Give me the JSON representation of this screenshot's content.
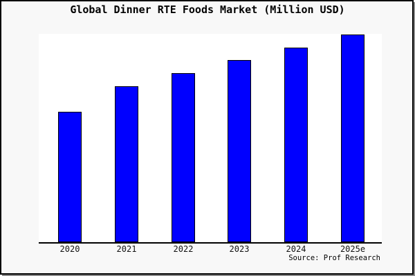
{
  "title": "Global Dinner RTE Foods Market (Million USD)",
  "source": "Source: Prof Research",
  "colors": {
    "bar_fill": "#0000ff",
    "bar_edge": "#000000",
    "plot_background": "#ffffff",
    "page_background": "#f8f8f8",
    "frame_border": "#000000",
    "frame_shadow": "#8a8a8a"
  },
  "chart_data": {
    "type": "bar",
    "title": "Global Dinner RTE Foods Market (Million USD)",
    "categories": [
      "2020",
      "2021",
      "2022",
      "2023",
      "2024",
      "2025e"
    ],
    "values": [
      62.8,
      75.1,
      81.4,
      87.7,
      93.7,
      100
    ],
    "values_note": "y-axis is unlabeled; values estimated from bar heights, normalized to 2025e = 100",
    "xlabel": "",
    "ylabel": "",
    "ylim": [
      0,
      100.3
    ],
    "grid": false,
    "y_axis_visible": false,
    "x_axis_visible": true,
    "legend": false,
    "annotation": "Source: Prof Research"
  }
}
